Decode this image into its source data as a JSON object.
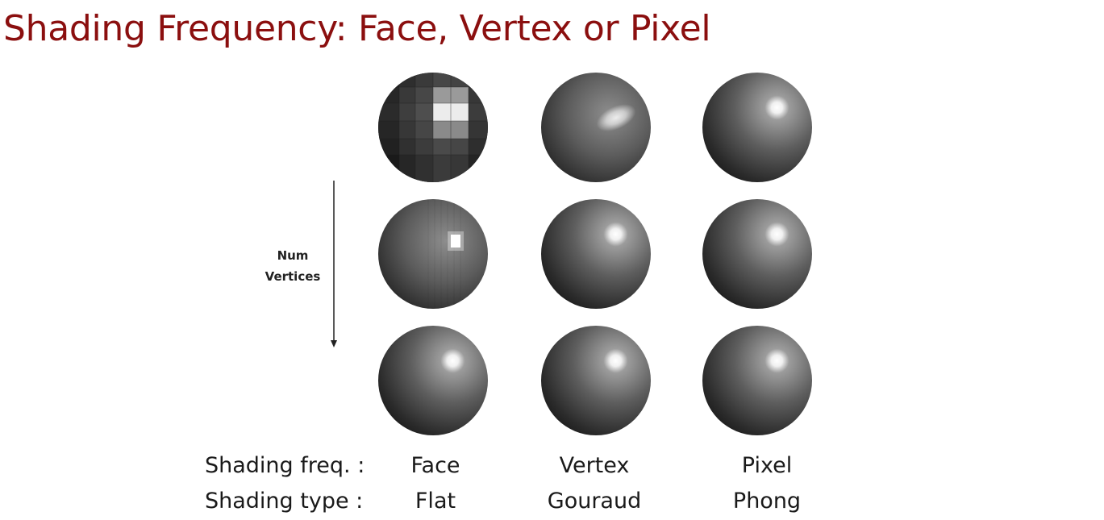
{
  "title": "Shading Frequency: Face, Vertex or Pixel",
  "axis": {
    "label_line1": "Num",
    "label_line2": "Vertices"
  },
  "rows": {
    "freq_label": "Shading freq. :",
    "type_label": "Shading type :"
  },
  "columns": [
    {
      "freq": "Face",
      "type": "Flat"
    },
    {
      "freq": "Vertex",
      "type": "Gouraud"
    },
    {
      "freq": "Pixel",
      "type": "Phong"
    }
  ],
  "colors": {
    "title": "#8b0f0f",
    "sphere_dark": "#1e1e1e",
    "sphere_mid": "#7a7a7a",
    "highlight": "#ffffff"
  }
}
